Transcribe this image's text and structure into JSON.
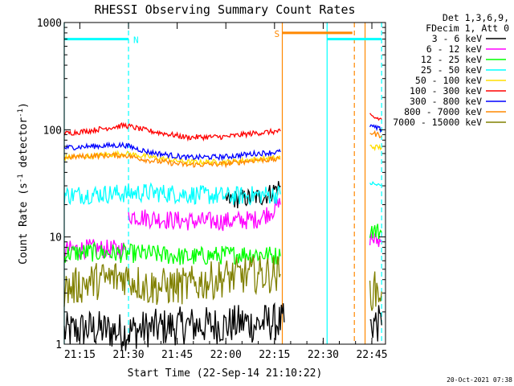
{
  "chart_data": {
    "type": "line",
    "title": "RHESSI Observing Summary Count Rates",
    "xlabel": "Start Time (22-Sep-14 21:10:22)",
    "ylabel_main": "Count Rate (s",
    "ylabel_sup1": "-1",
    "ylabel_mid": " detector",
    "ylabel_sup2": "-1",
    "ylabel_end": ")",
    "yscale": "log",
    "ylim": [
      1,
      1000
    ],
    "xlim_minutes": [
      21.17,
      22.82
    ],
    "x_ticks": [
      {
        "m": 21.25,
        "label": "21:15"
      },
      {
        "m": 21.5,
        "label": "21:30"
      },
      {
        "m": 21.75,
        "label": "21:45"
      },
      {
        "m": 22.0,
        "label": "22:00"
      },
      {
        "m": 22.25,
        "label": "22:15"
      },
      {
        "m": 22.5,
        "label": "22:30"
      },
      {
        "m": 22.75,
        "label": "22:45"
      }
    ],
    "y_ticks": [
      {
        "v": 1,
        "label": "1"
      },
      {
        "v": 10,
        "label": "10"
      },
      {
        "v": 100,
        "label": "100"
      },
      {
        "v": 1000,
        "label": "1000"
      }
    ],
    "legend_header": [
      "Det 1,3,6,9,",
      "FDecim 1, Att 0"
    ],
    "legend_placement": "right",
    "series": [
      {
        "name": "3 - 6 keV",
        "color": "#000000",
        "segments": [
          {
            "x": [
              21.17,
              21.3,
              21.48,
              21.6,
              21.8,
              22.0,
              22.1,
              22.15,
              22.2,
              22.3
            ],
            "y": [
              1.3,
              1.4,
              1.3,
              1.4,
              1.5,
              1.5,
              1.6,
              1.5,
              1.6,
              1.6
            ]
          },
          {
            "x": [
              22.0,
              22.1,
              22.2,
              22.28
            ],
            "y": [
              22,
              23,
              24,
              30
            ]
          },
          {
            "x": [
              22.74,
              22.76,
              22.8
            ],
            "y": [
              1.5,
              1.6,
              1.5
            ]
          }
        ]
      },
      {
        "name": "6 - 12 keV",
        "color": "#ff00ff",
        "segments": [
          {
            "x": [
              21.17,
              21.3,
              21.48
            ],
            "y": [
              7.5,
              7.8,
              7.6
            ]
          },
          {
            "x": [
              21.5,
              21.6,
              21.8,
              22.0,
              22.15,
              22.2,
              22.28
            ],
            "y": [
              16,
              15,
              14,
              14,
              14.5,
              16,
              20
            ]
          },
          {
            "x": [
              22.74,
              22.76,
              22.8
            ],
            "y": [
              10,
              9.5,
              9
            ]
          }
        ]
      },
      {
        "name": "12 - 25 keV",
        "color": "#00ff00",
        "segments": [
          {
            "x": [
              21.17,
              21.3,
              21.48,
              21.6,
              21.8,
              22.0,
              22.15,
              22.28
            ],
            "y": [
              7,
              7.2,
              7,
              7,
              6.5,
              6.8,
              7,
              6.6
            ]
          },
          {
            "x": [
              22.74,
              22.76,
              22.8
            ],
            "y": [
              12,
              11.5,
              11
            ]
          }
        ]
      },
      {
        "name": "25 - 50 keV",
        "color": "#00ffff",
        "segments": [
          {
            "x": [
              21.17,
              21.3,
              21.48,
              21.6,
              21.8,
              22.0,
              22.15,
              22.28
            ],
            "y": [
              24.5,
              25,
              25.5,
              26,
              25,
              24,
              24.5,
              25
            ]
          },
          {
            "x": [
              22.74,
              22.76,
              22.8
            ],
            "y": [
              32,
              31,
              30
            ]
          }
        ]
      },
      {
        "name": "50 - 100 keV",
        "color": "#ffdd00",
        "segments": [
          {
            "x": [
              21.17,
              21.3,
              21.48,
              21.6,
              21.8,
              22.0,
              22.15,
              22.28
            ],
            "y": [
              55,
              57,
              60,
              56,
              50,
              50,
              53,
              55
            ]
          },
          {
            "x": [
              22.74,
              22.76,
              22.8
            ],
            "y": [
              70,
              69,
              68
            ]
          }
        ]
      },
      {
        "name": "100 - 300 keV",
        "color": "#ff0000",
        "segments": [
          {
            "x": [
              21.17,
              21.3,
              21.48,
              21.6,
              21.8,
              22.0,
              22.15,
              22.28
            ],
            "y": [
              92,
              98,
              110,
              98,
              85,
              86,
              93,
              97
            ]
          },
          {
            "x": [
              22.74,
              22.76,
              22.8
            ],
            "y": [
              135,
              130,
              125
            ]
          }
        ]
      },
      {
        "name": "300 - 800 keV",
        "color": "#0000ff",
        "segments": [
          {
            "x": [
              21.17,
              21.3,
              21.48,
              21.6,
              21.8,
              22.0,
              22.15,
              22.28
            ],
            "y": [
              68,
              70,
              72,
              62,
              55,
              56,
              60,
              62
            ]
          },
          {
            "x": [
              22.74,
              22.76,
              22.8
            ],
            "y": [
              110,
              105,
              100
            ]
          }
        ]
      },
      {
        "name": "800 - 7000 keV",
        "color": "#ff8800",
        "segments": [
          {
            "x": [
              21.17,
              21.3,
              21.48,
              21.6,
              21.8,
              22.0,
              22.15,
              22.28
            ],
            "y": [
              55,
              57,
              58,
              52,
              47,
              48,
              52,
              53
            ]
          },
          {
            "x": [
              22.74,
              22.76,
              22.8
            ],
            "y": [
              95,
              92,
              88
            ]
          }
        ]
      },
      {
        "name": "7000 - 15000 keV",
        "color": "#808000",
        "segments": [
          {
            "x": [
              21.17,
              21.3,
              21.48,
              21.6,
              21.8,
              22.0,
              22.15,
              22.28
            ],
            "y": [
              3.2,
              3.8,
              4.3,
              3.4,
              3.5,
              4.2,
              4.5,
              4.5
            ]
          },
          {
            "x": [
              22.74,
              22.76,
              22.8
            ],
            "y": [
              3.0,
              3.2,
              3.1
            ]
          }
        ]
      }
    ],
    "attenuator_bars": [
      {
        "label": "N",
        "color": "#00ffff",
        "x_start": 21.17,
        "x_end": 21.5,
        "y": 700
      },
      {
        "label": "",
        "color": "#00ffff",
        "x_start": 22.52,
        "x_end": 22.8,
        "y": 700
      },
      {
        "label": "S",
        "color": "#ff8800",
        "x_start": 22.29,
        "x_end": 22.65,
        "y": 800
      }
    ],
    "vlines": [
      {
        "x": 21.17,
        "color": "#00ffff",
        "style": "solid"
      },
      {
        "x": 21.5,
        "color": "#00ffff",
        "style": "dashed"
      },
      {
        "x": 22.29,
        "color": "#ff8800",
        "style": "solid"
      },
      {
        "x": 22.52,
        "color": "#00ffff",
        "style": "solid"
      },
      {
        "x": 22.66,
        "color": "#ff8800",
        "style": "dashed"
      },
      {
        "x": 22.715,
        "color": "#ff8800",
        "style": "solid"
      },
      {
        "x": 22.8,
        "color": "#00ffff",
        "style": "dashed"
      }
    ],
    "timestamp": "20-Oct-2021 07:38"
  }
}
